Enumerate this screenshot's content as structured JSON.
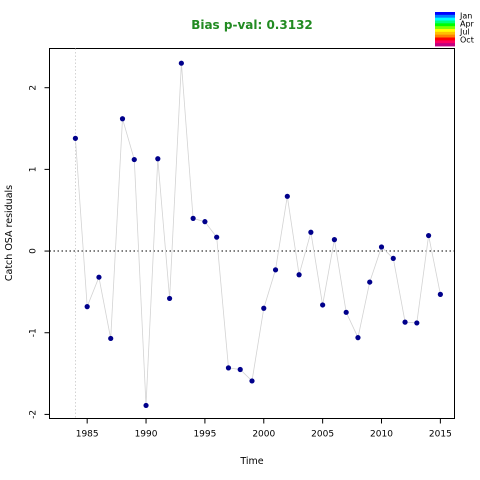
{
  "chart_data": {
    "type": "scatter",
    "title": "Bias p-val: 0.3132",
    "title_color": "#228B22",
    "xlabel": "Time",
    "ylabel": "Catch OSA residuals",
    "xlim": [
      1981.8,
      2016.2
    ],
    "ylim": [
      -2.05,
      2.48
    ],
    "x_ticks": [
      1985,
      1990,
      1995,
      2000,
      2005,
      2010,
      2015
    ],
    "y_ticks": [
      -2,
      -1,
      0,
      1,
      2
    ],
    "reference_line_y": 0,
    "start_marker_x": 1984,
    "point_color": "#00008B",
    "line_color": "#d3d3d3",
    "legend": {
      "placement": "top-right",
      "labels": [
        "Jan",
        "Apr",
        "Jul",
        "Oct"
      ],
      "colors": [
        "#0000ff",
        "#0080ff",
        "#00ffff",
        "#00ff80",
        "#00ff00",
        "#80ff00",
        "#ffff00",
        "#ffc000",
        "#ff8000",
        "#ff0000",
        "#ff0060",
        "#c00080"
      ]
    },
    "series": [
      {
        "x": [
          1984,
          1985,
          1986,
          1987,
          1988,
          1989,
          1990,
          1991,
          1992,
          1993,
          1994,
          1995,
          1996,
          1997,
          1998,
          1999,
          2000,
          2001,
          2002,
          2003,
          2004,
          2005,
          2006,
          2007,
          2008,
          2009,
          2010,
          2011,
          2012,
          2013,
          2014,
          2015
        ],
        "y": [
          1.38,
          -0.68,
          -0.32,
          -1.07,
          1.62,
          1.12,
          -1.89,
          1.13,
          -0.58,
          2.3,
          0.4,
          0.36,
          0.17,
          -1.43,
          -1.45,
          -1.59,
          -0.7,
          -0.23,
          0.67,
          -0.29,
          0.23,
          -0.66,
          0.14,
          -0.75,
          -1.06,
          -0.38,
          0.05,
          -0.09,
          -0.87,
          -0.88,
          0.19,
          -0.53
        ]
      }
    ]
  }
}
